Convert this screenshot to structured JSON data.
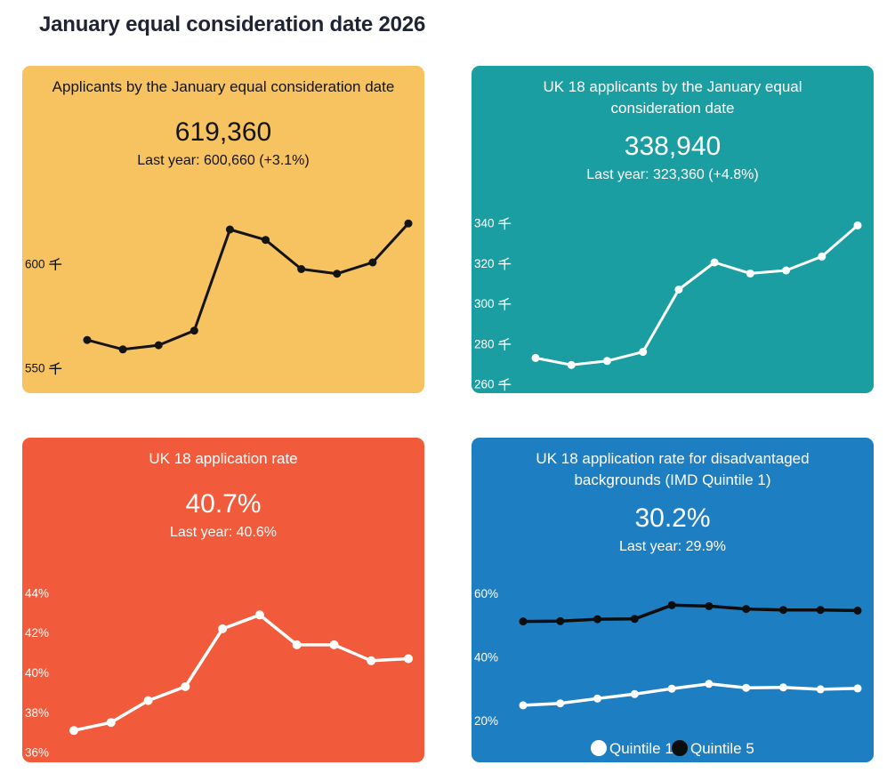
{
  "page": {
    "title": "January equal consideration date 2026"
  },
  "cards": [
    {
      "id": "applicants",
      "title": "Applicants by the January equal consideration date",
      "value": "619,360",
      "subtitle": "Last year: 600,660 (+3.1%)",
      "colors": {
        "background": "#F6C360",
        "text": "#141414",
        "line": "#141414"
      }
    },
    {
      "id": "uk18-applicants",
      "title": "UK 18 applicants by the January equal consideration date",
      "value": "338,940",
      "subtitle": "Last year: 323,360 (+4.8%)",
      "colors": {
        "background": "#1A9EA2",
        "text": "#FFFFFF",
        "line": "#FFFFFF"
      }
    },
    {
      "id": "uk18-rate",
      "title": "UK 18 application rate",
      "value": "40.7%",
      "subtitle": "Last year: 40.6%",
      "colors": {
        "background": "#F15B3C",
        "text": "#FFFFFF",
        "line": "#FFFFFF"
      }
    },
    {
      "id": "imd-rates",
      "title": "UK 18 application rate for disadvantaged backgrounds (IMD Quintile 1)",
      "value": "30.2%",
      "subtitle": "Last year: 29.9%",
      "colors": {
        "background": "#1E7EC2",
        "text": "#FFFFFF"
      }
    }
  ],
  "chart_data": [
    {
      "id": "applicants",
      "type": "line",
      "title": "Applicants by the January equal consideration date",
      "unit": "thousands (千)",
      "x_labels": null,
      "ylim": [
        538,
        628
      ],
      "grid": false,
      "legend": null,
      "yticks": [
        {
          "value": 600,
          "label": "600 千"
        },
        {
          "value": 550,
          "label": "550 千"
        }
      ],
      "series": [
        {
          "name": "Applicants",
          "color": "#141414",
          "values": [
            563.5,
            559.0,
            561.0,
            568.0,
            616.5,
            611.5,
            597.5,
            595.3,
            600.7,
            619.4
          ]
        }
      ]
    },
    {
      "id": "uk18-applicants",
      "type": "line",
      "title": "UK 18 applicants by the January equal consideration date",
      "unit": "thousands (千)",
      "x_labels": null,
      "ylim": [
        255.5,
        351
      ],
      "grid": false,
      "legend": null,
      "yticks": [
        {
          "value": 340,
          "label": "340 千"
        },
        {
          "value": 320,
          "label": "320 千"
        },
        {
          "value": 300,
          "label": "300 千"
        },
        {
          "value": 280,
          "label": "280 千"
        },
        {
          "value": 260,
          "label": "260 千"
        }
      ],
      "series": [
        {
          "name": "UK 18 applicants",
          "color": "#FFFFFF",
          "values": [
            273.0,
            269.5,
            271.5,
            276.0,
            307.0,
            320.5,
            315.0,
            316.5,
            323.4,
            338.9
          ]
        }
      ]
    },
    {
      "id": "uk18-rate",
      "type": "line",
      "title": "UK 18 application rate",
      "unit": "percent",
      "x_labels": null,
      "ylim": [
        35.5,
        45.1
      ],
      "grid": false,
      "legend": null,
      "yticks": [
        {
          "value": 44,
          "label": "44%"
        },
        {
          "value": 42,
          "label": "42%"
        },
        {
          "value": 40,
          "label": "40%"
        },
        {
          "value": 38,
          "label": "38%"
        },
        {
          "value": 36,
          "label": "36%"
        }
      ],
      "series": [
        {
          "name": "UK 18 application rate",
          "color": "#FFFFFF",
          "values": [
            37.1,
            37.5,
            38.6,
            39.3,
            42.2,
            42.9,
            41.4,
            41.4,
            40.6,
            40.7
          ]
        }
      ]
    },
    {
      "id": "imd-rates",
      "type": "line",
      "title": "UK 18 application rate for disadvantaged backgrounds (IMD Quintile 1)",
      "unit": "percent",
      "x_labels": null,
      "ylim": [
        7,
        67
      ],
      "grid": false,
      "legend": {
        "position": "bottom",
        "items": [
          {
            "label": "Quintile 1",
            "color": "#FFFFFF"
          },
          {
            "label": "Quintile 5",
            "color": "#0D0D0D"
          }
        ]
      },
      "yticks": [
        {
          "value": 60,
          "label": "60%"
        },
        {
          "value": 40,
          "label": "40%"
        },
        {
          "value": 20,
          "label": "20%"
        }
      ],
      "series": [
        {
          "name": "Quintile 1",
          "color": "#FFFFFF",
          "values": [
            24.9,
            25.5,
            27.0,
            28.4,
            30.1,
            31.6,
            30.4,
            30.5,
            29.9,
            30.2
          ]
        },
        {
          "name": "Quintile 5",
          "color": "#0D0D0D",
          "values": [
            51.2,
            51.3,
            51.9,
            52.0,
            56.3,
            56.0,
            55.1,
            54.8,
            54.8,
            54.6
          ]
        }
      ]
    }
  ]
}
